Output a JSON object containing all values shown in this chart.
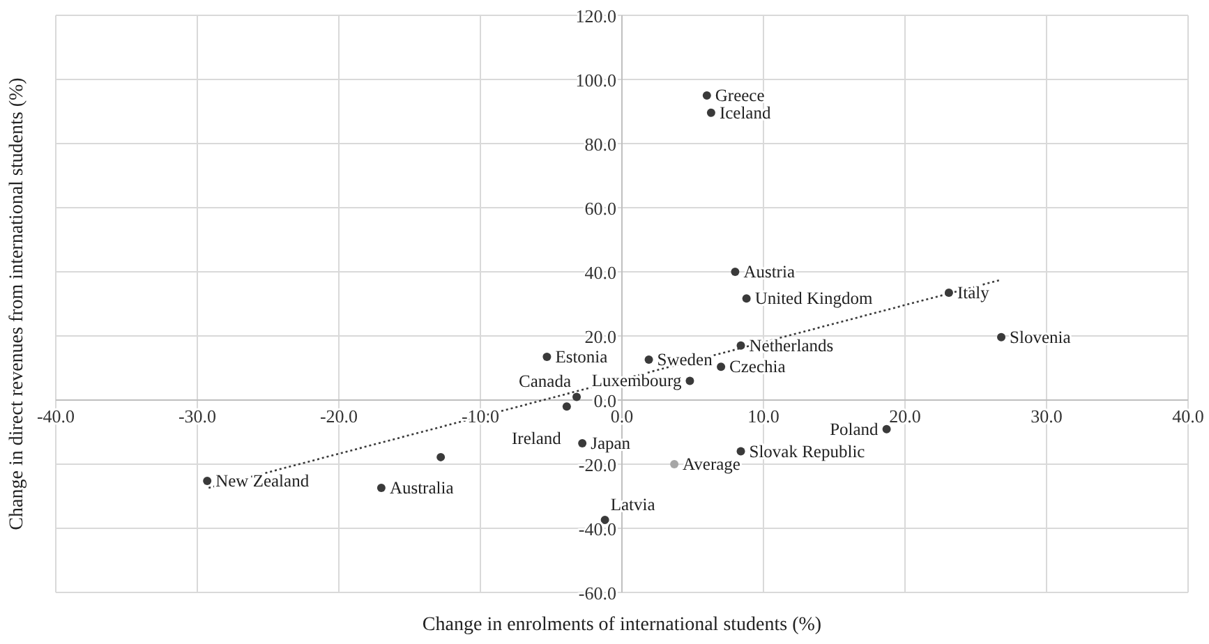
{
  "chart_data": {
    "type": "scatter",
    "xlabel": "Change in enrolments of international students (%)",
    "ylabel": "Change in direct revenues from international students (%)",
    "xlim": [
      -40,
      40
    ],
    "xticks": [
      {
        "value": -40,
        "label": "-40.0"
      },
      {
        "value": -30,
        "label": "-30.0"
      },
      {
        "value": -20,
        "label": "-20.0"
      },
      {
        "value": -10,
        "label": "-10.0"
      },
      {
        "value": 0,
        "label": "0.0"
      },
      {
        "value": 10,
        "label": "10.0"
      },
      {
        "value": 20,
        "label": "20.0"
      },
      {
        "value": 30,
        "label": "30.0"
      },
      {
        "value": 40,
        "label": "40.0"
      }
    ],
    "ylim": [
      -60,
      120
    ],
    "yticks": [
      {
        "value": -60,
        "label": "-60.0"
      },
      {
        "value": -40,
        "label": "-40.0"
      },
      {
        "value": -20,
        "label": "-20.0"
      },
      {
        "value": 0,
        "label": "0.0"
      },
      {
        "value": 20,
        "label": "20.0"
      },
      {
        "value": 40,
        "label": "40.0"
      },
      {
        "value": 60,
        "label": "60.0"
      },
      {
        "value": 80,
        "label": "80.0"
      },
      {
        "value": 100,
        "label": "100.0"
      },
      {
        "value": 120,
        "label": "120.0"
      }
    ],
    "grid": true,
    "legend": false,
    "series": [
      {
        "color": "#3a3a3a",
        "marker": "circle",
        "x": [
          6.0,
          6.3,
          8.0,
          8.8,
          23.1,
          26.8,
          8.4,
          1.9,
          -5.3,
          7.0,
          4.8,
          -3.2,
          -3.9,
          18.7,
          -2.8,
          8.4,
          -1.2,
          -12.8,
          -29.3,
          -17.0
        ],
        "values": [
          95,
          89.6,
          40,
          31.7,
          33.5,
          19.6,
          17,
          12.6,
          13.5,
          10.4,
          6,
          1,
          -2,
          -9.1,
          -13.5,
          -16,
          -37.4,
          -17.8,
          -25.2,
          -27.4
        ]
      },
      {
        "color": "#a6a6a6",
        "marker": "circle",
        "x": [
          3.7
        ],
        "values": [
          -20
        ]
      },
      {
        "type": "line",
        "color": "#3a3a3a",
        "line_style": "dotted",
        "marker": "none",
        "x": [
          -29.2,
          26.7
        ],
        "values": [
          -27.4,
          37.4
        ]
      }
    ],
    "annotations": [
      {
        "text": "Greece",
        "x": 6.0,
        "y": 95
      },
      {
        "text": "Iceland",
        "x": 6.3,
        "y": 89.6
      },
      {
        "text": "Austria",
        "x": 8.0,
        "y": 40
      },
      {
        "text": "United Kingdom",
        "x": 8.8,
        "y": 31.7
      },
      {
        "text": "Italy",
        "x": 23.1,
        "y": 33.5
      },
      {
        "text": "Slovenia",
        "x": 26.8,
        "y": 19.6
      },
      {
        "text": "Netherlands",
        "x": 8.4,
        "y": 17
      },
      {
        "text": "Sweden",
        "x": 1.9,
        "y": 12.6
      },
      {
        "text": "Estonia",
        "x": -5.3,
        "y": 13.5
      },
      {
        "text": "Czechia",
        "x": 7.0,
        "y": 10.4
      },
      {
        "text": "Luxembourg",
        "x": 4.8,
        "y": 6
      },
      {
        "text": "Canada",
        "x": -3.2,
        "y": 1
      },
      {
        "text": "Ireland",
        "x": -3.9,
        "y": -2
      },
      {
        "text": "Poland",
        "x": 18.7,
        "y": -9.1
      },
      {
        "text": "Japan",
        "x": -2.8,
        "y": -13.5
      },
      {
        "text": "Slovak Republic",
        "x": 8.4,
        "y": -16
      },
      {
        "text": "Average",
        "x": 3.7,
        "y": -20
      },
      {
        "text": "Latvia",
        "x": -1.2,
        "y": -37.4
      },
      {
        "text": "New Zealand",
        "x": -29.3,
        "y": -25.2
      },
      {
        "text": "Australia",
        "x": -17.0,
        "y": -27.4
      }
    ]
  }
}
